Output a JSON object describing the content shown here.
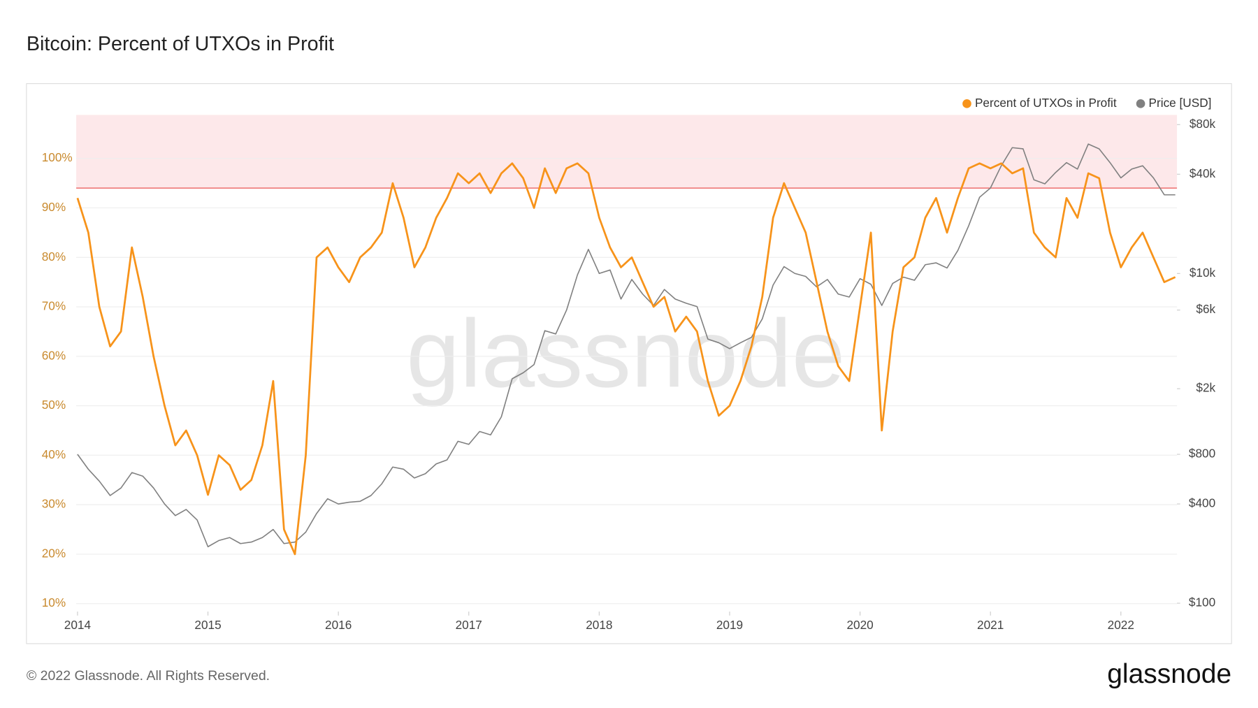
{
  "title": "Bitcoin: Percent of UTXOs in Profit",
  "copyright": "© 2022 Glassnode. All Rights Reserved.",
  "brand": "glassnode",
  "watermark": "glassnode",
  "chart_data": {
    "type": "line",
    "legend": "top-right",
    "grid": true,
    "x": [
      2014,
      2014.083,
      2014.167,
      2014.25,
      2014.333,
      2014.417,
      2014.5,
      2014.583,
      2014.667,
      2014.75,
      2014.833,
      2014.917,
      2015,
      2015.083,
      2015.167,
      2015.25,
      2015.333,
      2015.417,
      2015.5,
      2015.583,
      2015.667,
      2015.75,
      2015.833,
      2015.917,
      2016,
      2016.083,
      2016.167,
      2016.25,
      2016.333,
      2016.417,
      2016.5,
      2016.583,
      2016.667,
      2016.75,
      2016.833,
      2016.917,
      2017,
      2017.083,
      2017.167,
      2017.25,
      2017.333,
      2017.417,
      2017.5,
      2017.583,
      2017.667,
      2017.75,
      2017.833,
      2017.917,
      2018,
      2018.083,
      2018.167,
      2018.25,
      2018.333,
      2018.417,
      2018.5,
      2018.583,
      2018.667,
      2018.75,
      2018.833,
      2018.917,
      2019,
      2019.083,
      2019.167,
      2019.25,
      2019.333,
      2019.417,
      2019.5,
      2019.583,
      2019.667,
      2019.75,
      2019.833,
      2019.917,
      2020,
      2020.083,
      2020.167,
      2020.25,
      2020.333,
      2020.417,
      2020.5,
      2020.583,
      2020.667,
      2020.75,
      2020.833,
      2020.917,
      2021,
      2021.083,
      2021.167,
      2021.25,
      2021.333,
      2021.417,
      2021.5,
      2021.583,
      2021.667,
      2021.75,
      2021.833,
      2021.917,
      2022,
      2022.083,
      2022.167,
      2022.25,
      2022.333,
      2022.417
    ],
    "xlim": [
      2013.99,
      2022.43
    ],
    "xticks": [
      2014,
      2015,
      2016,
      2017,
      2018,
      2019,
      2020,
      2021,
      2022
    ],
    "ylim": [
      8.4,
      108.8
    ],
    "yticks": [
      {
        "value": 10,
        "label": "10%"
      },
      {
        "value": 20,
        "label": "20%"
      },
      {
        "value": 30,
        "label": "30%"
      },
      {
        "value": 40,
        "label": "40%"
      },
      {
        "value": 50,
        "label": "50%"
      },
      {
        "value": 60,
        "label": "60%"
      },
      {
        "value": 70,
        "label": "70%"
      },
      {
        "value": 80,
        "label": "80%"
      },
      {
        "value": 90,
        "label": "90%"
      },
      {
        "value": 100,
        "label": "100%"
      }
    ],
    "y2log": true,
    "y2lim": [
      89,
      91600
    ],
    "y2ticks": [
      {
        "value": 100,
        "label": "$100"
      },
      {
        "value": 400,
        "label": "$400"
      },
      {
        "value": 800,
        "label": "$800"
      },
      {
        "value": 2000,
        "label": "$2k"
      },
      {
        "value": 6000,
        "label": "$6k"
      },
      {
        "value": 10000,
        "label": "$10k"
      },
      {
        "value": 40000,
        "label": "$40k"
      },
      {
        "value": 80000,
        "label": "$80k"
      }
    ],
    "threshold": 94,
    "threshold_color": "#f08080",
    "band_color": "#fde8ea",
    "series": [
      {
        "name": "Percent of UTXOs in Profit",
        "color": "#f7931a",
        "values": [
          92,
          85,
          70,
          62,
          65,
          82,
          72,
          60,
          50,
          42,
          45,
          40,
          32,
          40,
          38,
          33,
          35,
          42,
          55,
          25,
          20,
          40,
          80,
          82,
          78,
          75,
          80,
          82,
          85,
          95,
          88,
          78,
          82,
          88,
          92,
          97,
          95,
          97,
          93,
          97,
          99,
          96,
          90,
          98,
          93,
          98,
          99,
          97,
          88,
          82,
          78,
          80,
          75,
          70,
          72,
          65,
          68,
          65,
          55,
          48,
          50,
          55,
          62,
          72,
          88,
          95,
          90,
          85,
          75,
          65,
          58,
          55,
          70,
          85,
          45,
          65,
          78,
          80,
          88,
          92,
          85,
          92,
          98,
          99,
          98,
          99,
          97,
          98,
          85,
          82,
          80,
          92,
          88,
          97,
          96,
          85,
          78,
          82,
          85,
          80,
          75,
          76
        ]
      },
      {
        "name": "Price [USD]",
        "color": "#808080",
        "axis": "y2",
        "values": [
          800,
          650,
          550,
          450,
          500,
          620,
          590,
          500,
          400,
          340,
          370,
          320,
          220,
          240,
          250,
          230,
          235,
          250,
          280,
          230,
          235,
          270,
          350,
          430,
          400,
          410,
          415,
          450,
          530,
          670,
          650,
          575,
          610,
          700,
          740,
          960,
          920,
          1100,
          1050,
          1350,
          2300,
          2500,
          2800,
          4500,
          4300,
          6000,
          9800,
          14000,
          10000,
          10500,
          7000,
          9200,
          7500,
          6400,
          8000,
          7000,
          6600,
          6300,
          4000,
          3800,
          3500,
          3800,
          4100,
          5300,
          8500,
          11000,
          10000,
          9600,
          8300,
          9200,
          7500,
          7200,
          9300,
          8600,
          6400,
          8700,
          9500,
          9100,
          11300,
          11600,
          10800,
          13800,
          19500,
          29000,
          33000,
          45000,
          58000,
          57000,
          37000,
          35000,
          41000,
          47000,
          43000,
          61000,
          57000,
          47000,
          38000,
          43000,
          45000,
          38000,
          30000,
          30000
        ]
      }
    ]
  }
}
